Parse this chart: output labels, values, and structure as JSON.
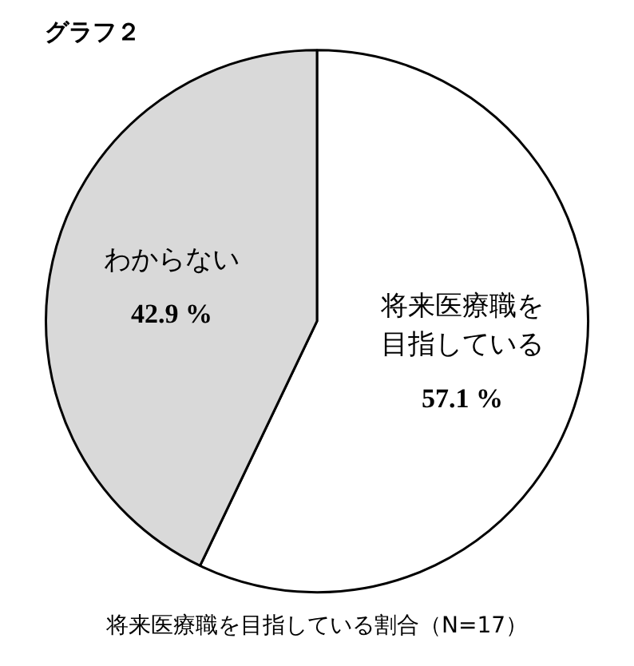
{
  "chart_data": {
    "type": "pie",
    "title": "グラフ２",
    "categories": [
      "将来医療職を目指している",
      "わからない"
    ],
    "values": [
      57.1,
      42.9
    ],
    "colors": [
      "#ffffff",
      "#d9d9d9"
    ],
    "value_labels": [
      "57.1 %",
      "42.9 %"
    ],
    "annotations": [
      "将来医療職を目指している割合（N=17）"
    ],
    "legend": false
  }
}
